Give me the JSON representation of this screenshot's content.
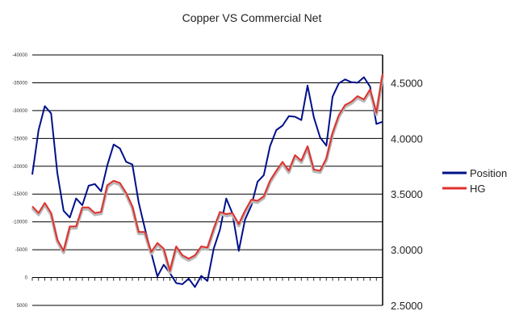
{
  "chart_data": {
    "type": "line",
    "title": "Copper VS Commercial Net",
    "y_left": {
      "range": [
        5000,
        -40000
      ],
      "ticks": [
        5000,
        0,
        -5000,
        -10000,
        -15000,
        -20000,
        -25000,
        -30000,
        -35000,
        -40000
      ],
      "tick_labels": [
        "5000",
        "0",
        "-5000",
        "-10000",
        "-15000",
        "-20000",
        "-25000",
        "-30000",
        "-35000",
        "-40000"
      ]
    },
    "y_right": {
      "range": [
        2.5,
        4.75
      ],
      "ticks": [
        2.5,
        3.0,
        3.5,
        4.0,
        4.5
      ],
      "tick_labels": [
        "2.5000",
        "3.0000",
        "3.5000",
        "4.0000",
        "4.5000"
      ]
    },
    "grid": true,
    "legend_position": "right",
    "series": [
      {
        "name": "Position",
        "axis": "left",
        "color": "#00108a",
        "values": [
          -18500,
          -26500,
          -30800,
          -29500,
          -18800,
          -12000,
          -10800,
          -14200,
          -13000,
          -16500,
          -16800,
          -15500,
          -20200,
          -23900,
          -23200,
          -20800,
          -20300,
          -13500,
          -8800,
          -4500,
          -200,
          -2300,
          -800,
          1000,
          1200,
          200,
          1700,
          -300,
          600,
          -5200,
          -8600,
          -14200,
          -11500,
          -4800,
          -10400,
          -12900,
          -17200,
          -18400,
          -23600,
          -26500,
          -27300,
          -29000,
          -28900,
          -28300,
          -34500,
          -28800,
          -25200,
          -23700,
          -32500,
          -34900,
          -35600,
          -35100,
          -35000,
          -36000,
          -34300,
          -27600,
          -28000
        ]
      },
      {
        "name": "HG",
        "axis": "right",
        "color": "#e0312d",
        "values": [
          3.39,
          3.33,
          3.42,
          3.33,
          3.09,
          2.99,
          3.21,
          3.21,
          3.38,
          3.38,
          3.33,
          3.34,
          3.58,
          3.62,
          3.6,
          3.51,
          3.39,
          3.16,
          3.16,
          2.98,
          3.06,
          3.01,
          2.81,
          3.03,
          2.95,
          2.92,
          2.95,
          3.03,
          3.02,
          3.19,
          3.34,
          3.32,
          3.33,
          3.23,
          3.35,
          3.45,
          3.44,
          3.48,
          3.62,
          3.71,
          3.79,
          3.71,
          3.85,
          3.8,
          3.93,
          3.72,
          3.71,
          3.82,
          4.05,
          4.21,
          4.3,
          4.33,
          4.38,
          4.35,
          4.44,
          4.23,
          4.58
        ]
      }
    ]
  }
}
